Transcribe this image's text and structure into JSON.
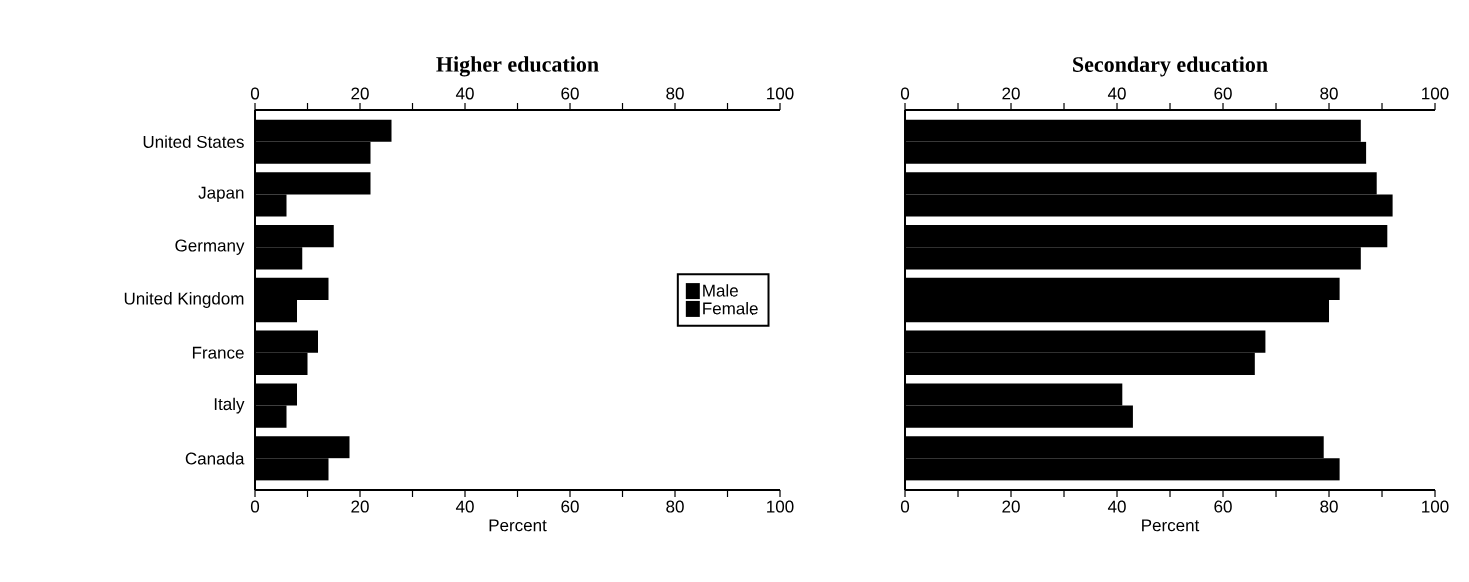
{
  "chart_data": [
    {
      "type": "bar",
      "orientation": "horizontal",
      "title": "Higher education",
      "xlabel": "Percent",
      "categories": [
        "United States",
        "Japan",
        "Germany",
        "United Kingdom",
        "France",
        "Italy",
        "Canada"
      ],
      "series": [
        {
          "name": "Male",
          "color": "#000000",
          "values": [
            26,
            22,
            15,
            14,
            12,
            8,
            18
          ]
        },
        {
          "name": "Female",
          "color": "#000000",
          "values": [
            22,
            6,
            9,
            8,
            10,
            6,
            14
          ]
        }
      ],
      "xlim": [
        0,
        100
      ],
      "xticks": [
        0,
        {
          "value": 10,
          "label": null
        },
        20,
        {
          "value": 30,
          "label": null
        },
        40,
        {
          "value": 50,
          "label": null
        },
        60,
        {
          "value": 70,
          "label": null
        },
        80,
        {
          "value": 90,
          "label": null
        },
        100
      ],
      "x2lim": [
        0,
        100
      ],
      "x2ticks": [
        0,
        {
          "value": 10,
          "label": null
        },
        20,
        {
          "value": 30,
          "label": null
        },
        40,
        {
          "value": 50,
          "label": null
        },
        60,
        {
          "value": 70,
          "label": null
        },
        80,
        {
          "value": 90,
          "label": null
        },
        100
      ],
      "legend": "right"
    },
    {
      "type": "bar",
      "orientation": "horizontal",
      "title": "Secondary education",
      "xlabel": "Percent",
      "categories": [
        null,
        null,
        null,
        null,
        null,
        null,
        null
      ],
      "series": [
        {
          "color": "#000000",
          "values": [
            86,
            89,
            91,
            82,
            68,
            41,
            79
          ]
        },
        {
          "color": "#000000",
          "values": [
            87,
            92,
            86,
            80,
            66,
            43,
            82
          ]
        }
      ],
      "xlim": [
        0,
        100
      ],
      "xticks": [
        0,
        {
          "value": 10,
          "label": null
        },
        20,
        {
          "value": 30,
          "label": null
        },
        40,
        {
          "value": 50,
          "label": null
        },
        60,
        {
          "value": 70,
          "label": null
        },
        80,
        {
          "value": 90,
          "label": null
        },
        100
      ],
      "x2lim": [
        0,
        100
      ],
      "x2ticks": [
        0,
        {
          "value": 10,
          "label": null
        },
        20,
        {
          "value": 30,
          "label": null
        },
        40,
        {
          "value": 50,
          "label": null
        },
        60,
        {
          "value": 70,
          "label": null
        },
        80,
        {
          "value": 90,
          "label": null
        },
        100
      ],
      "tick_labels": "x"
    }
  ]
}
